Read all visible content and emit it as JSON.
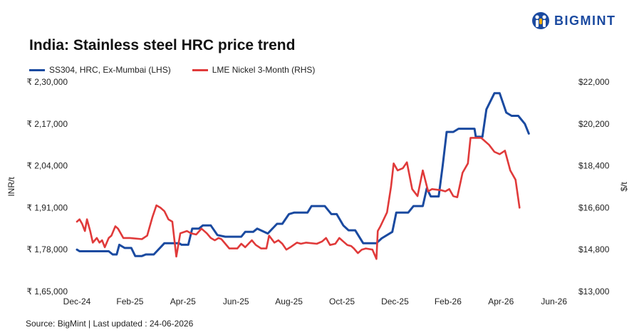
{
  "brand": {
    "name": "BIGMINT",
    "logo_color": "#1b4aa0"
  },
  "chart_data": {
    "type": "line",
    "title": "India: Stainless steel HRC price trend",
    "ylabel_left": "INR/t",
    "ylabel_right": "$/t",
    "ylim_left": [
      165000,
      230000
    ],
    "ylim_right": [
      13000,
      22000
    ],
    "left_ticks": [
      "₹ 2,30,000",
      "₹ 2,17,000",
      "₹ 2,04,000",
      "₹ 1,91,000",
      "₹ 1,78,000",
      "₹ 1,65,000"
    ],
    "right_ticks": [
      "$22,000",
      "$20,200",
      "$18,400",
      "$16,600",
      "$14,800",
      "$13,000"
    ],
    "x_tick_labels": [
      "Dec-24",
      "Feb-25",
      "Apr-25",
      "Jun-25",
      "Aug-25",
      "Oct-25",
      "Dec-25",
      "Feb-26",
      "Apr-26",
      "Jun-26"
    ],
    "x_range_months": [
      0,
      18.6
    ],
    "grid": false,
    "legend_position": "top-left",
    "source": "Source: BigMint | Last updated : 24-06-2026",
    "series": [
      {
        "name": "SS304, HRC, Ex-Mumbai (LHS)",
        "axis": "left",
        "color": "#1a4aa0",
        "points": [
          [
            0.0,
            178000
          ],
          [
            0.1,
            177500
          ],
          [
            1.2,
            177500
          ],
          [
            1.35,
            176500
          ],
          [
            1.5,
            176500
          ],
          [
            1.6,
            179500
          ],
          [
            1.8,
            178500
          ],
          [
            2.05,
            178500
          ],
          [
            2.2,
            176000
          ],
          [
            2.45,
            176000
          ],
          [
            2.6,
            176500
          ],
          [
            2.9,
            176500
          ],
          [
            3.3,
            180000
          ],
          [
            3.85,
            180000
          ],
          [
            3.95,
            179500
          ],
          [
            4.2,
            179500
          ],
          [
            4.35,
            184500
          ],
          [
            4.6,
            184500
          ],
          [
            4.75,
            185500
          ],
          [
            5.05,
            185500
          ],
          [
            5.3,
            182500
          ],
          [
            5.6,
            182000
          ],
          [
            6.2,
            182000
          ],
          [
            6.35,
            183500
          ],
          [
            6.65,
            183500
          ],
          [
            6.8,
            184500
          ],
          [
            7.2,
            183000
          ],
          [
            7.55,
            186000
          ],
          [
            7.75,
            186000
          ],
          [
            8.0,
            189000
          ],
          [
            8.2,
            189500
          ],
          [
            8.7,
            189500
          ],
          [
            8.85,
            191500
          ],
          [
            9.35,
            191500
          ],
          [
            9.6,
            189000
          ],
          [
            9.8,
            189000
          ],
          [
            10.05,
            185500
          ],
          [
            10.25,
            184000
          ],
          [
            10.5,
            184000
          ],
          [
            10.8,
            180000
          ],
          [
            11.3,
            180000
          ],
          [
            11.5,
            181500
          ],
          [
            11.9,
            183500
          ],
          [
            12.05,
            189500
          ],
          [
            12.5,
            189500
          ],
          [
            12.7,
            191500
          ],
          [
            13.05,
            191500
          ],
          [
            13.2,
            197000
          ],
          [
            13.35,
            194500
          ],
          [
            13.65,
            194500
          ],
          [
            13.8,
            204000
          ],
          [
            13.95,
            214500
          ],
          [
            14.2,
            214500
          ],
          [
            14.4,
            215500
          ],
          [
            15.0,
            215500
          ],
          [
            15.05,
            213000
          ],
          [
            15.3,
            213000
          ],
          [
            15.45,
            221500
          ],
          [
            15.75,
            226500
          ],
          [
            15.95,
            226500
          ],
          [
            16.2,
            220500
          ],
          [
            16.4,
            219500
          ],
          [
            16.65,
            219500
          ],
          [
            16.9,
            217000
          ],
          [
            17.05,
            214000
          ]
        ]
      },
      {
        "name": "LME Nickel 3-Month (RHS)",
        "axis": "right",
        "color": "#e03a3a",
        "points": [
          [
            0.0,
            16000
          ],
          [
            0.1,
            16100
          ],
          [
            0.2,
            15900
          ],
          [
            0.3,
            15600
          ],
          [
            0.38,
            16100
          ],
          [
            0.5,
            15600
          ],
          [
            0.6,
            15100
          ],
          [
            0.75,
            15300
          ],
          [
            0.85,
            15100
          ],
          [
            0.95,
            15200
          ],
          [
            1.05,
            14900
          ],
          [
            1.2,
            15300
          ],
          [
            1.3,
            15400
          ],
          [
            1.45,
            15800
          ],
          [
            1.55,
            15700
          ],
          [
            1.65,
            15500
          ],
          [
            1.75,
            15300
          ],
          [
            2.0,
            15300
          ],
          [
            2.45,
            15250
          ],
          [
            2.65,
            15400
          ],
          [
            2.85,
            16200
          ],
          [
            3.0,
            16700
          ],
          [
            3.15,
            16600
          ],
          [
            3.3,
            16450
          ],
          [
            3.45,
            16100
          ],
          [
            3.6,
            16000
          ],
          [
            3.75,
            14500
          ],
          [
            3.9,
            15500
          ],
          [
            4.15,
            15600
          ],
          [
            4.3,
            15500
          ],
          [
            4.5,
            15450
          ],
          [
            4.7,
            15700
          ],
          [
            4.9,
            15500
          ],
          [
            5.05,
            15300
          ],
          [
            5.2,
            15200
          ],
          [
            5.35,
            15300
          ],
          [
            5.45,
            15250
          ],
          [
            5.6,
            15050
          ],
          [
            5.75,
            14850
          ],
          [
            6.05,
            14850
          ],
          [
            6.2,
            15050
          ],
          [
            6.35,
            14900
          ],
          [
            6.6,
            15200
          ],
          [
            6.75,
            15000
          ],
          [
            6.95,
            14850
          ],
          [
            7.15,
            14850
          ],
          [
            7.25,
            15400
          ],
          [
            7.45,
            15100
          ],
          [
            7.6,
            15200
          ],
          [
            7.75,
            15050
          ],
          [
            7.9,
            14800
          ],
          [
            8.05,
            14900
          ],
          [
            8.3,
            15100
          ],
          [
            8.45,
            15050
          ],
          [
            8.65,
            15100
          ],
          [
            9.05,
            15050
          ],
          [
            9.25,
            15150
          ],
          [
            9.4,
            15300
          ],
          [
            9.55,
            15000
          ],
          [
            9.75,
            15050
          ],
          [
            9.9,
            15300
          ],
          [
            10.05,
            15150
          ],
          [
            10.2,
            15000
          ],
          [
            10.35,
            14950
          ],
          [
            10.45,
            14850
          ],
          [
            10.6,
            14650
          ],
          [
            10.75,
            14800
          ],
          [
            10.9,
            14850
          ],
          [
            11.15,
            14800
          ],
          [
            11.3,
            14400
          ],
          [
            11.35,
            15600
          ],
          [
            11.45,
            15800
          ],
          [
            11.7,
            16400
          ],
          [
            11.85,
            17500
          ],
          [
            11.95,
            18500
          ],
          [
            12.1,
            18200
          ],
          [
            12.3,
            18300
          ],
          [
            12.45,
            18550
          ],
          [
            12.65,
            17400
          ],
          [
            12.85,
            17100
          ],
          [
            13.05,
            18200
          ],
          [
            13.25,
            17300
          ],
          [
            13.4,
            17400
          ],
          [
            13.75,
            17350
          ],
          [
            13.9,
            17300
          ],
          [
            14.05,
            17400
          ],
          [
            14.2,
            17100
          ],
          [
            14.35,
            17050
          ],
          [
            14.55,
            18100
          ],
          [
            14.75,
            18500
          ],
          [
            14.85,
            19600
          ],
          [
            15.25,
            19600
          ],
          [
            15.55,
            19300
          ],
          [
            15.75,
            19000
          ],
          [
            15.95,
            18900
          ],
          [
            16.15,
            19050
          ],
          [
            16.35,
            18200
          ],
          [
            16.55,
            17800
          ],
          [
            16.7,
            16600
          ]
        ]
      }
    ]
  }
}
